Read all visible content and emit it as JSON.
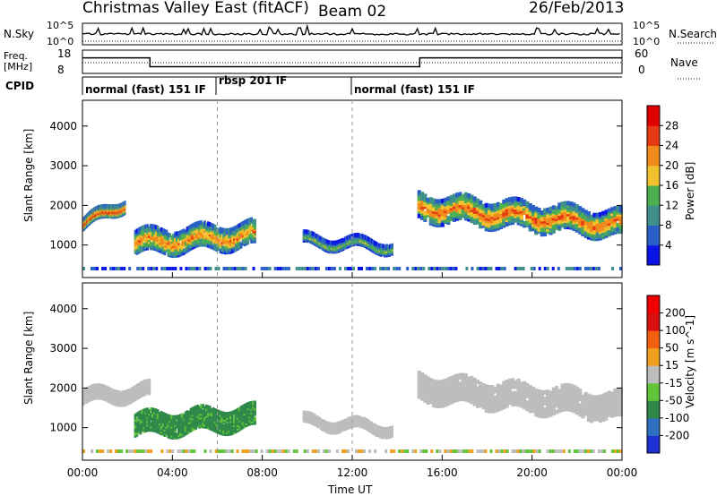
{
  "header": {
    "title": "Christmas Valley East (fitACF)",
    "beam": "Beam 02",
    "date": "26/Feb/2013"
  },
  "nsky_panel": {
    "left_label": "N.Sky",
    "right_label": "N.Search",
    "left_ticks": [
      "10^5",
      "10^0"
    ],
    "right_ticks": [
      "10^5",
      "10^0"
    ]
  },
  "freq_panel": {
    "left_label_1": "Freq.",
    "left_label_2": "[MHz]",
    "right_label": "Nave",
    "left_ticks": [
      "18",
      "8"
    ],
    "right_ticks": [
      "60",
      "0"
    ]
  },
  "cpid": {
    "label": "CPID",
    "segments": [
      {
        "start": 0,
        "end": 6,
        "text": "normal (fast) 151 IF"
      },
      {
        "start": 6,
        "end": 12,
        "text": "rbsp 201 IF"
      },
      {
        "start": 12,
        "end": 24,
        "text": "normal (fast) 151 IF"
      }
    ]
  },
  "axes": {
    "xlabel": "Time UT",
    "ylabel": "Slant Range [km]",
    "x_ticks": [
      "00:00",
      "04:00",
      "08:00",
      "12:00",
      "16:00",
      "20:00",
      "00:00"
    ],
    "y_ticks": [
      "1000",
      "2000",
      "3000",
      "4000"
    ]
  },
  "power_scale": {
    "label": "Power [dB]",
    "ticks": [
      "4",
      "8",
      "12",
      "16",
      "20",
      "24",
      "28"
    ],
    "colors": [
      "#0a14e6",
      "#2a5fc8",
      "#3f8f8a",
      "#4caf50",
      "#f2c22e",
      "#f08a1c",
      "#e63a14",
      "#e00000"
    ]
  },
  "velocity_scale": {
    "label": "Velocity [m s^-1]",
    "ticks": [
      "200",
      "100",
      "50",
      "15",
      "-15",
      "-50",
      "-100",
      "-200"
    ],
    "colors": [
      "#2030d0",
      "#2f6fc0",
      "#2f8a4a",
      "#62c43a",
      "#bdbdbd",
      "#f0a020",
      "#f06010",
      "#d81010",
      "#f00000"
    ]
  },
  "chart_data": [
    {
      "type": "heatmap",
      "title": "Christmas Valley East (fitACF) Beam 02 26/Feb/2013",
      "variable": "Power [dB]",
      "xlabel": "Time UT",
      "ylabel": "Slant Range [km]",
      "xlim": [
        0,
        24
      ],
      "ylim": [
        180,
        4650
      ],
      "colorbar_range": [
        0,
        30
      ],
      "echo_regions": [
        {
          "name": "early",
          "x": [
            0.0,
            1.9
          ],
          "y_center": [
            1500,
            2050
          ],
          "thickness": 250,
          "power": 26
        },
        {
          "name": "night-patch",
          "x": [
            2.3,
            7.7
          ],
          "y_center": [
            1050,
            1250
          ],
          "thickness": 550,
          "power": 22
        },
        {
          "name": "mid",
          "x": [
            9.8,
            13.8
          ],
          "y_center": [
            1100,
            950
          ],
          "thickness": 220,
          "power": 15
        },
        {
          "name": "afternoon",
          "x": [
            14.9,
            24.0
          ],
          "y_center": [
            1950,
            1500
          ],
          "thickness": 600,
          "power": 24
        }
      ]
    },
    {
      "type": "heatmap",
      "variable": "Velocity [m s^-1]",
      "xlabel": "Time UT",
      "ylabel": "Slant Range [km]",
      "xlim": [
        0,
        24
      ],
      "ylim": [
        180,
        4650
      ],
      "colorbar_range": [
        -200,
        200
      ],
      "echo_regions": [
        {
          "name": "early",
          "x": [
            0.0,
            3.0
          ],
          "y_center": [
            1750,
            1900
          ],
          "thickness": 300,
          "velocity": 0
        },
        {
          "name": "night-patch",
          "x": [
            2.3,
            7.7
          ],
          "y_center": [
            1050,
            1250
          ],
          "thickness": 500,
          "velocity": 60
        },
        {
          "name": "mid",
          "x": [
            9.8,
            13.8
          ],
          "y_center": [
            1150,
            950
          ],
          "thickness": 200,
          "velocity": 0
        },
        {
          "name": "afternoon",
          "x": [
            14.9,
            24.0
          ],
          "y_center": [
            2000,
            1500
          ],
          "thickness": 600,
          "velocity": 0
        }
      ]
    },
    {
      "type": "line",
      "name": "Freq. [MHz]",
      "x": [
        0,
        3,
        3,
        15,
        15,
        24
      ],
      "y": [
        15,
        15,
        10.5,
        10.5,
        15,
        15
      ],
      "ylim": [
        8,
        18
      ]
    },
    {
      "type": "line",
      "name": "N.Sky",
      "x": [
        0,
        24
      ],
      "y": [
        1,
        1
      ]
    }
  ]
}
